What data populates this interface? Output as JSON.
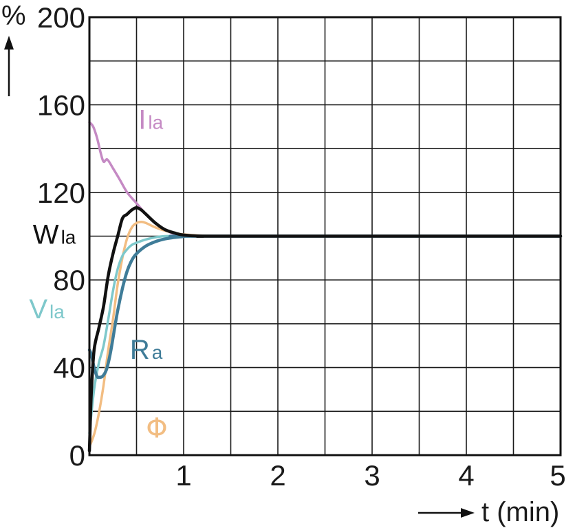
{
  "chart_data": {
    "type": "line",
    "xlabel": "t (min)",
    "ylabel": "%",
    "xlim": [
      0,
      5
    ],
    "ylim": [
      0,
      200
    ],
    "x_ticks": [
      0,
      1,
      2,
      3,
      4,
      5
    ],
    "x_tick_labels": [
      "",
      "1",
      "2",
      "3",
      "4",
      "5"
    ],
    "y_ticks": [
      0,
      40,
      80,
      120,
      160,
      200
    ],
    "y_tick_labels": [
      "0",
      "40",
      "80",
      "120",
      "160",
      "200"
    ],
    "x_grid_step": 0.5,
    "y_grid_step": 20,
    "grid": true,
    "series": [
      {
        "name": "Ila",
        "label_main": "I",
        "label_sub": "la",
        "color": "#c58ac4",
        "x": [
          0,
          0.04,
          0.08,
          0.12,
          0.15,
          0.19,
          0.25,
          0.32,
          0.4,
          0.5,
          0.6,
          0.7,
          0.8,
          0.9,
          1.0,
          1.1,
          1.3
        ],
        "y": [
          152,
          150,
          145,
          138,
          134,
          135,
          131,
          126,
          120,
          115,
          110,
          106,
          103,
          101,
          100.5,
          100.2,
          100
        ]
      },
      {
        "name": "Wla",
        "label_main": "W",
        "label_sub": "la",
        "color": "#111111",
        "x": [
          0,
          0.02,
          0.05,
          0.1,
          0.15,
          0.2,
          0.25,
          0.3,
          0.35,
          0.4,
          0.45,
          0.5,
          0.55,
          0.6,
          0.7,
          0.8,
          0.9,
          1.0,
          1.2,
          1.5,
          5
        ],
        "y": [
          2,
          28,
          48,
          58,
          68,
          82,
          92,
          100,
          108,
          110,
          112,
          113,
          112,
          110,
          106,
          103,
          101.5,
          100.5,
          100,
          100,
          100
        ]
      },
      {
        "name": "Vla",
        "label_main": "V",
        "label_sub": "la",
        "color": "#7ec8cb",
        "x": [
          0,
          0.05,
          0.1,
          0.15,
          0.2,
          0.25,
          0.3,
          0.35,
          0.4,
          0.45,
          0.5,
          0.6,
          0.7,
          0.8,
          0.9,
          1.0,
          1.5,
          5
        ],
        "y": [
          10,
          30,
          42,
          50,
          62,
          75,
          85,
          91,
          94,
          96,
          97,
          98.5,
          99.5,
          100,
          100,
          100,
          100,
          100
        ]
      },
      {
        "name": "Ra",
        "label_main": "R",
        "label_sub": "a",
        "color": "#3f7c98",
        "x": [
          0,
          0.02,
          0.05,
          0.08,
          0.1,
          0.14,
          0.18,
          0.22,
          0.26,
          0.3,
          0.35,
          0.4,
          0.45,
          0.5,
          0.6,
          0.7,
          0.8,
          0.9,
          1.0,
          1.2,
          5
        ],
        "y": [
          48,
          46,
          40,
          36,
          35.5,
          36,
          39,
          46,
          56,
          66,
          76,
          84,
          89,
          92,
          95.5,
          97.5,
          98.7,
          99.4,
          99.8,
          100,
          100
        ]
      },
      {
        "name": "Φ",
        "label_main": "Φ",
        "label_sub": "",
        "color": "#f2bd82",
        "x": [
          0,
          0.03,
          0.06,
          0.1,
          0.15,
          0.2,
          0.25,
          0.3,
          0.35,
          0.4,
          0.45,
          0.5,
          0.55,
          0.6,
          0.7,
          0.8,
          0.9,
          1.0,
          1.2,
          1.5
        ],
        "y": [
          4,
          7,
          11,
          19,
          32,
          48,
          62,
          78,
          90,
          99,
          104,
          106,
          106.5,
          106,
          104,
          102.5,
          101.5,
          100.8,
          100.2,
          100
        ]
      }
    ]
  }
}
